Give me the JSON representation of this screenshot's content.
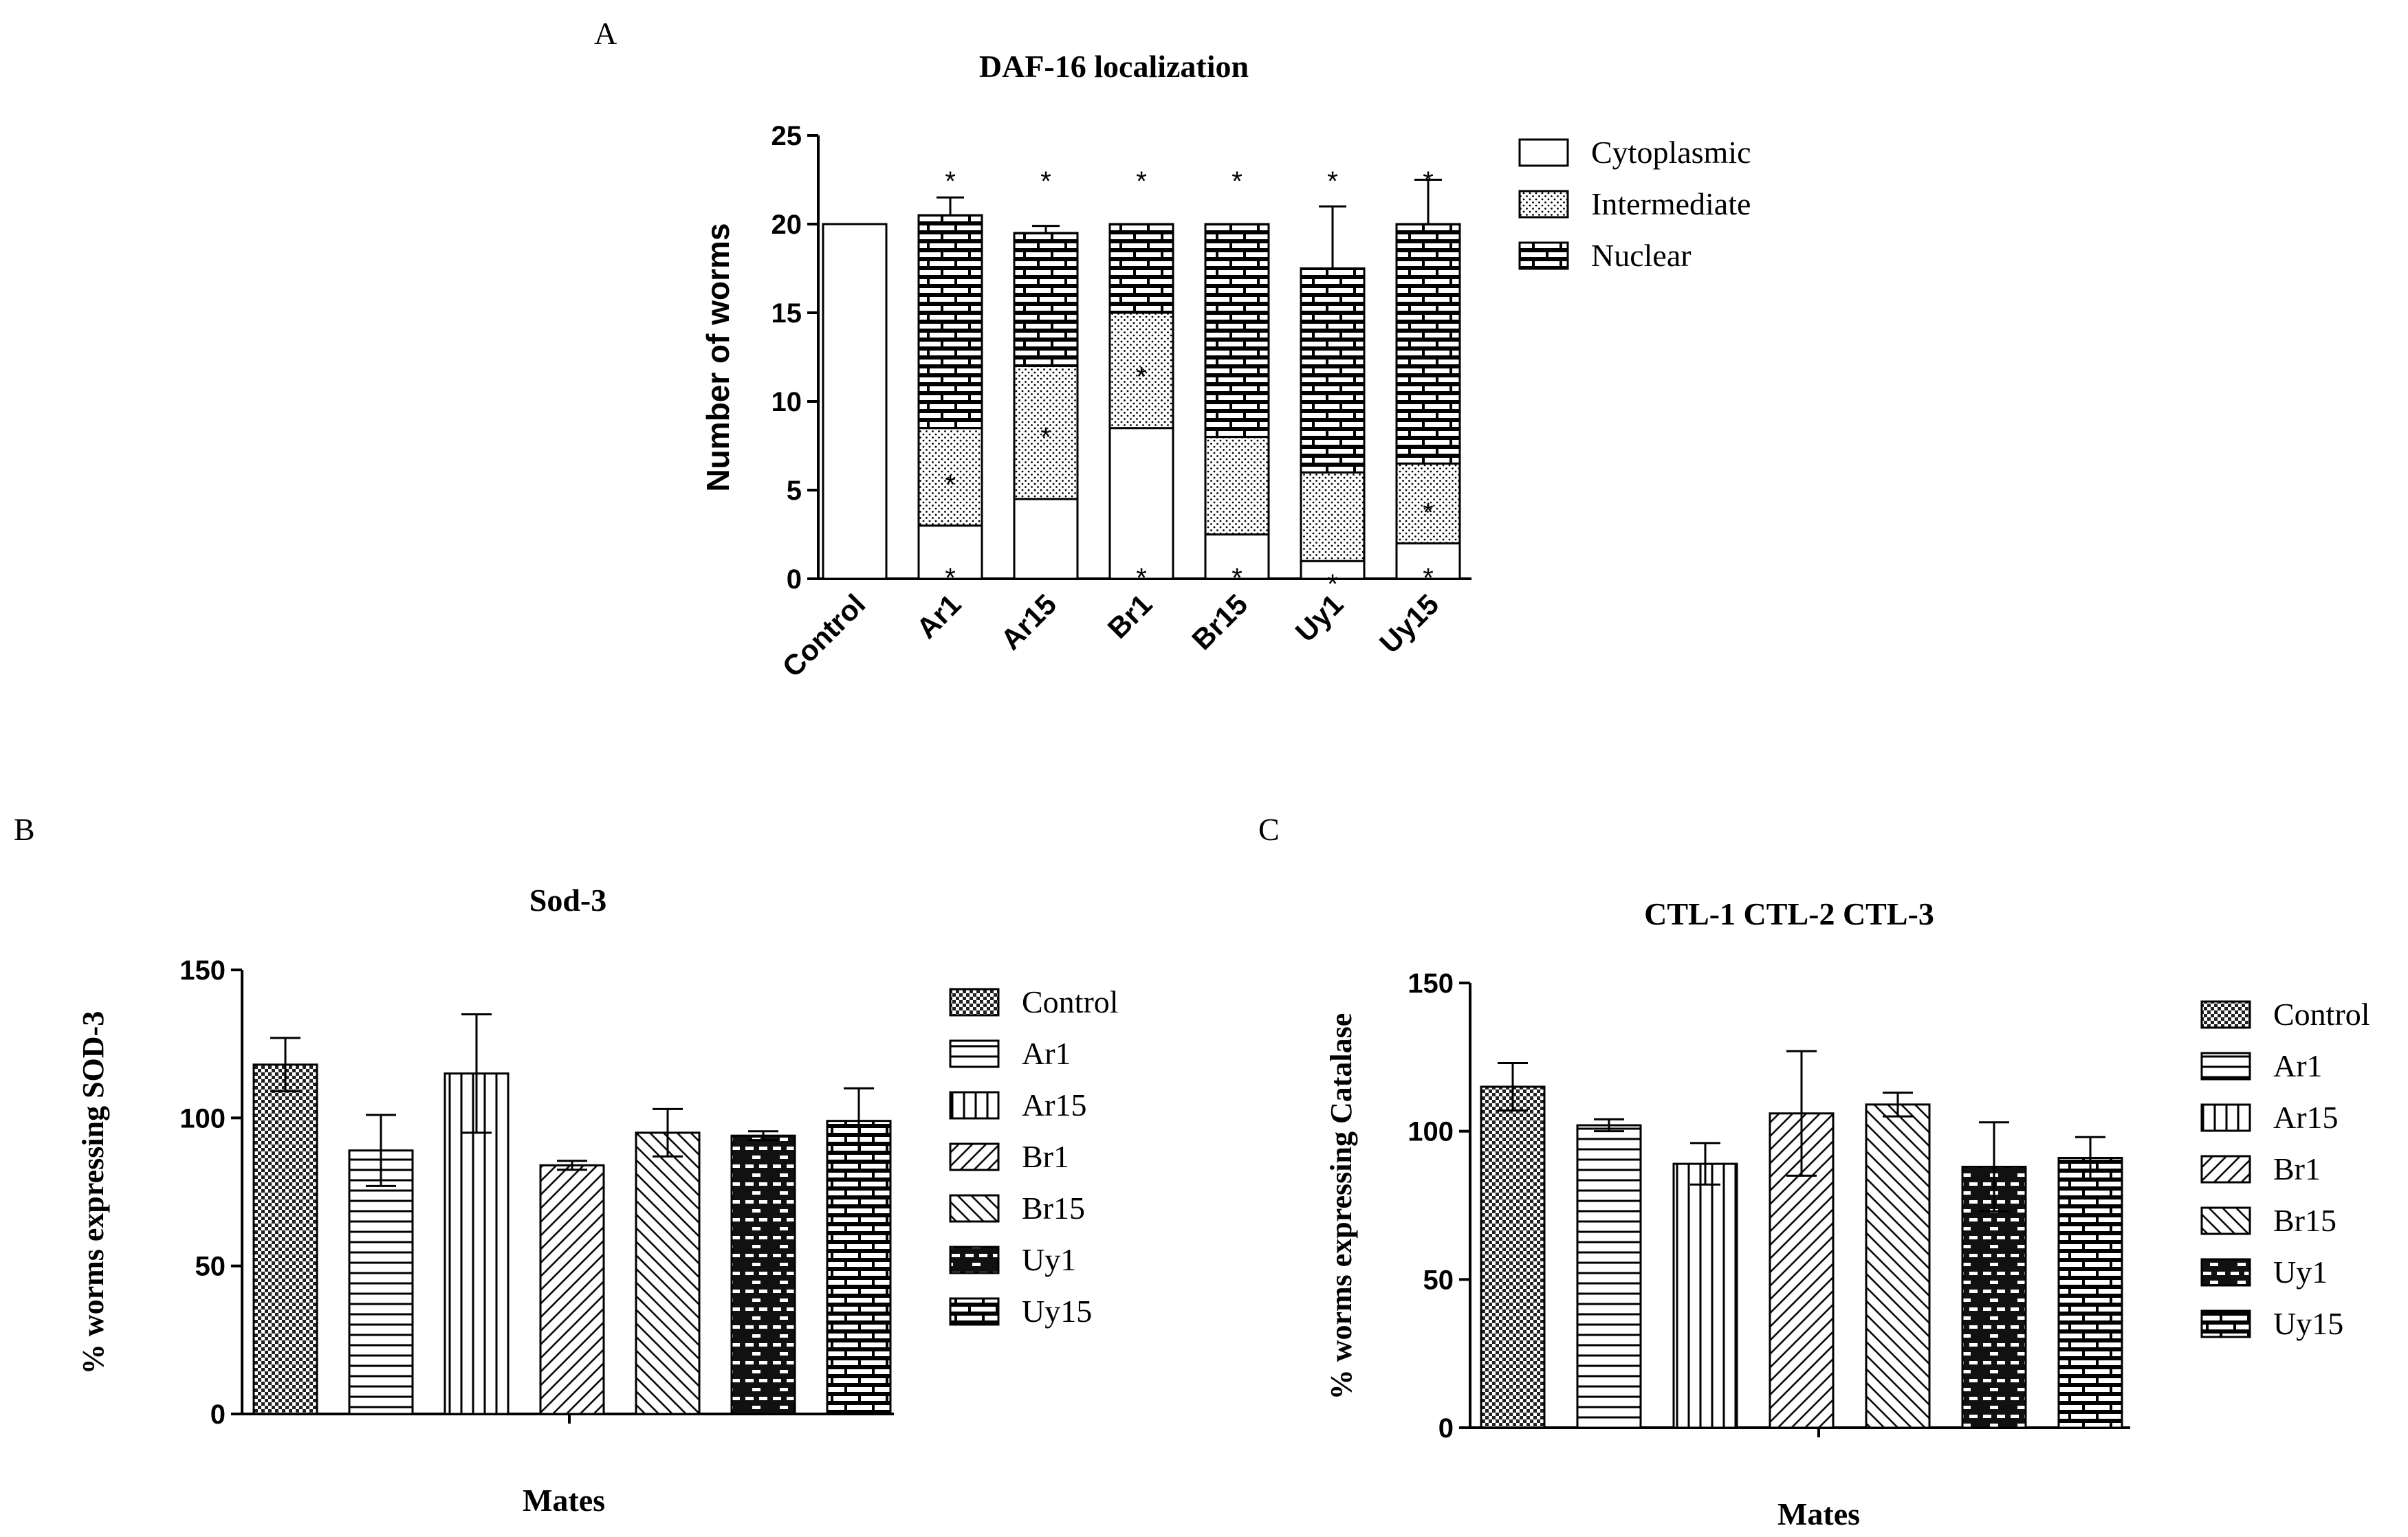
{
  "panel_letters": {
    "a": "A",
    "b": "B",
    "c": "C"
  },
  "chart_data": [
    {
      "type": "bar",
      "stacked": true,
      "title": "DAF-16 localization",
      "xlabel": "",
      "ylabel": "Number of worms",
      "ylim": [
        0,
        25
      ],
      "yticks": [
        0,
        5,
        10,
        15,
        20,
        25
      ],
      "categories": [
        "Control",
        "Ar1",
        "Ar15",
        "Br1",
        "Br15",
        "Uy1",
        "Uy15"
      ],
      "series": [
        {
          "name": "Cytoplasmic",
          "pattern": "none",
          "values": [
            20,
            3,
            4.5,
            8.5,
            2.5,
            1,
            2
          ],
          "errors": [
            0,
            2,
            0.5,
            1.5,
            0.5,
            1,
            1
          ]
        },
        {
          "name": "Intermediate",
          "pattern": "dots",
          "values": [
            0,
            5.5,
            7.5,
            6.5,
            5.5,
            5,
            4.5
          ],
          "errors": [
            0,
            1.5,
            0.8,
            1.5,
            0.5,
            0,
            1.5
          ]
        },
        {
          "name": "Nuclear",
          "pattern": "brick",
          "values": [
            0,
            12,
            7.5,
            5,
            12,
            11.5,
            13.5
          ],
          "errors": [
            0,
            1,
            0.4,
            0,
            0,
            3.5,
            2.5
          ]
        }
      ],
      "annotations": {
        "symbol": "*",
        "Cytoplasmic": [
          false,
          true,
          false,
          true,
          true,
          true,
          true
        ],
        "Intermediate": [
          false,
          true,
          true,
          true,
          false,
          false,
          true
        ],
        "Nuclear": [
          false,
          true,
          true,
          true,
          true,
          true,
          true
        ]
      },
      "legend": {
        "position": "right",
        "entries": [
          "Cytoplasmic",
          "Intermediate",
          "Nuclear"
        ]
      }
    },
    {
      "type": "bar",
      "title": "Sod-3",
      "xlabel": "Mates",
      "ylabel": "%  worms expressing SOD-3",
      "ylim": [
        0,
        150
      ],
      "yticks": [
        0,
        50,
        100,
        150
      ],
      "categories": [
        "Control",
        "Ar1",
        "Ar15",
        "Br1",
        "Br15",
        "Uy1",
        "Uy15"
      ],
      "patterns": [
        "checker",
        "hlines",
        "vlines",
        "diag-up",
        "diag-down",
        "brick-dark",
        "brick"
      ],
      "values": [
        118,
        89,
        115,
        84,
        95,
        94,
        99
      ],
      "errors": [
        9,
        12,
        20,
        1.5,
        8,
        1.5,
        11
      ],
      "legend": {
        "position": "right",
        "entries": [
          "Control",
          "Ar1",
          "Ar15",
          "Br1",
          "Br15",
          "Uy1",
          "Uy15"
        ]
      }
    },
    {
      "type": "bar",
      "title": "CTL-1 CTL-2 CTL-3",
      "xlabel": "Mates",
      "ylabel": "%  worms expressing Catalase",
      "ylim": [
        0,
        150
      ],
      "yticks": [
        0,
        50,
        100,
        150
      ],
      "categories": [
        "Control",
        "Ar1",
        "Ar15",
        "Br1",
        "Br15",
        "Uy1",
        "Uy15"
      ],
      "patterns": [
        "checker",
        "hlines",
        "vlines",
        "diag-up",
        "diag-down",
        "brick-dark",
        "brick"
      ],
      "values": [
        115,
        102,
        89,
        106,
        109,
        88,
        91
      ],
      "errors": [
        8,
        2,
        7,
        21,
        4,
        15,
        7
      ],
      "legend": {
        "position": "right",
        "entries": [
          "Control",
          "Ar1",
          "Ar15",
          "Br1",
          "Br15",
          "Uy1",
          "Uy15"
        ]
      }
    }
  ]
}
